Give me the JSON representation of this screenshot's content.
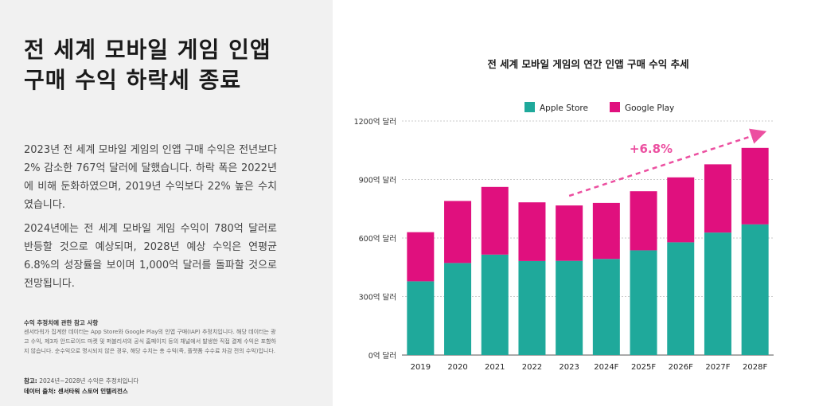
{
  "left": {
    "headline_line1": "전 세계 모바일 게임 인앱",
    "headline_line2": "구매 수익 하락세 종료",
    "paragraph1": "2023년 전 세계 모바일 게임의 인앱 구매 수익은 전년보다 2% 감소한 767억 달러에 달했습니다. 하락 폭은 2022년에 비해 둔화하였으며, 2019년 수익보다 22% 높은 수치였습니다.",
    "paragraph2": "2024년에는 전 세계 모바일 게임 수익이 780억 달러로 반등할 것으로 예상되며, 2028년 예상 수익은 연평균 6.8%의 성장률을 보이며 1,000억 달러를 돌파할 것으로 전망됩니다.",
    "note_title": "수익 추정치에 관한 참고 사항",
    "note_body": "센서타워가 집계한 데이터는 App Store와 Google Play의 인앱 구매(IAP) 추정치입니다. 해당 데이터는 광고 수익, 제3자 안드로이드 마켓 및 퍼블리셔의 공식 홈페이지 등의 채널에서 발생한 직접 결제 수익은 포함하지 않습니다. 순수익으로 명시되지 않은 경우, 해당 수치는 총 수익(즉, 플랫폼 수수료 차감 전의 수익)입니다.",
    "foot_label": "참고:",
    "foot_text": " 2024년~2028년 수익은 추정치입니다",
    "source_label": "데이터 출처:",
    "source_text": " 센서타워 스토어 인텔리전스"
  },
  "chart_data": {
    "type": "bar",
    "stacked": true,
    "title": "전 세계 모바일 게임의 연간 인앱 구매 수익 추세",
    "categories": [
      "2019",
      "2020",
      "2021",
      "2022",
      "2023",
      "2024F",
      "2025F",
      "2026F",
      "2027F",
      "2028F"
    ],
    "series": [
      {
        "name": "Apple Store",
        "color": "#1fa99b",
        "values": [
          378,
          472,
          515,
          482,
          483,
          493,
          537,
          578,
          628,
          670
        ]
      },
      {
        "name": "Google Play",
        "color": "#e0107e",
        "values": [
          252,
          318,
          347,
          301,
          284,
          287,
          303,
          333,
          350,
          392
        ]
      }
    ],
    "y_ticks": [
      "0억 달러",
      "300억 달러",
      "600억 달러",
      "900억 달러",
      "1200억 달러"
    ],
    "y_tick_values": [
      0,
      300,
      600,
      900,
      1200
    ],
    "ylim": [
      0,
      1200
    ],
    "legend_position": "top-center",
    "annotation": {
      "text": "+6.8%",
      "color": "#ec4fa0"
    },
    "grid": true
  }
}
